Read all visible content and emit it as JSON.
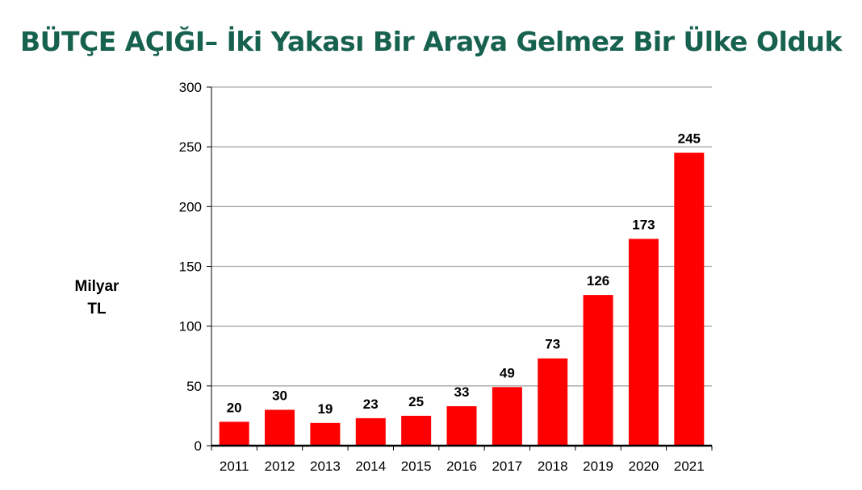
{
  "title": "BÜTÇE AÇIĞI– İki Yakası Bir Araya Gelmez Bir Ülke Olduk",
  "y_unit": [
    "Milyar",
    "TL"
  ],
  "colors": {
    "title": "#17614f",
    "bar": "#ff0000",
    "grid": "#a6a6a6",
    "axis": "#000000"
  },
  "chart_data": {
    "type": "bar",
    "categories": [
      "2011",
      "2012",
      "2013",
      "2014",
      "2015",
      "2016",
      "2017",
      "2018",
      "2019",
      "2020",
      "2021"
    ],
    "values": [
      20,
      30,
      19,
      23,
      25,
      33,
      49,
      73,
      126,
      173,
      245
    ],
    "data_labels": [
      "20",
      "30",
      "19",
      "23",
      "25",
      "33",
      "49",
      "73",
      "126",
      "173",
      "245"
    ],
    "ylim": [
      0,
      300
    ],
    "yticks": [
      0,
      50,
      100,
      150,
      200,
      250,
      300
    ],
    "grid": true,
    "legend": "none"
  }
}
